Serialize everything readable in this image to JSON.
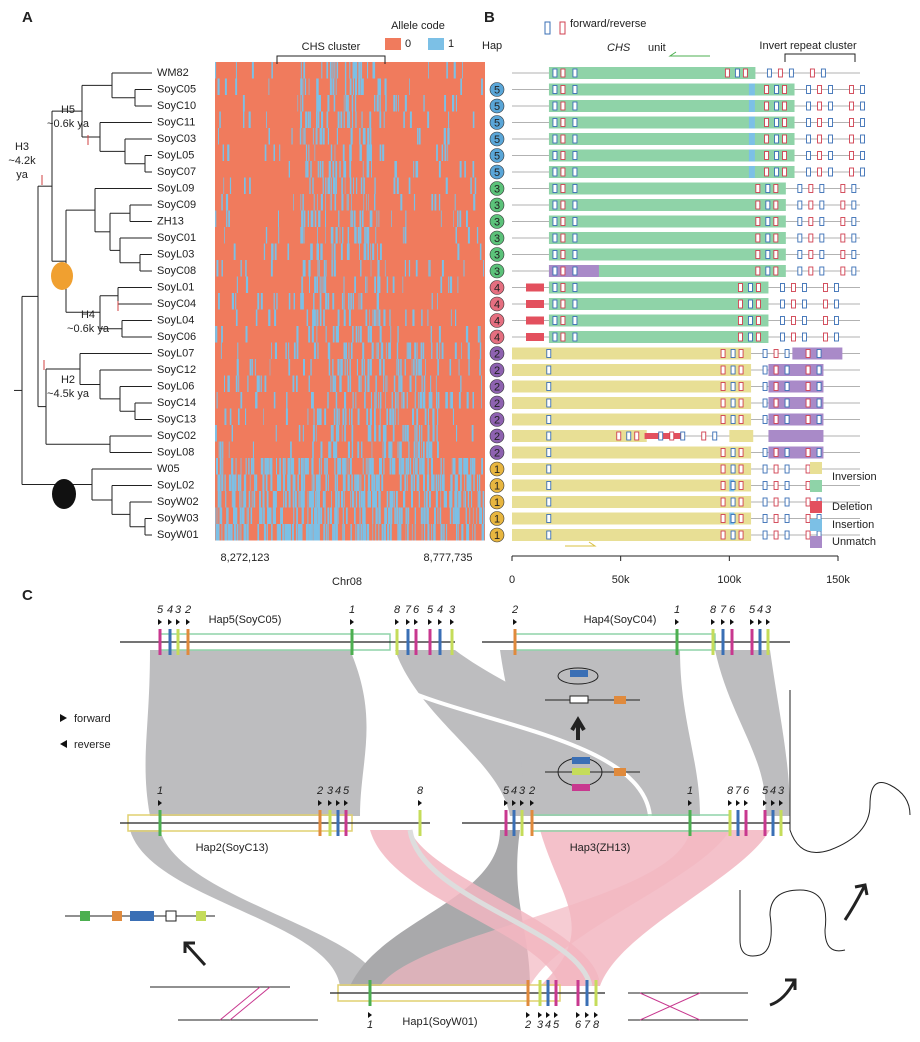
{
  "panels": {
    "a": "A",
    "b": "B",
    "c": "C"
  },
  "panel_a": {
    "samples": [
      "WM82",
      "SoyC05",
      "SoyC10",
      "SoyC11",
      "SoyC03",
      "SoyL05",
      "SoyC07",
      "SoyL09",
      "SoyC09",
      "ZH13",
      "SoyC01",
      "SoyL03",
      "SoyC08",
      "SoyL01",
      "SoyC04",
      "SoyL04",
      "SoyC06",
      "SoyL07",
      "SoyC12",
      "SoyL06",
      "SoyC14",
      "SoyC13",
      "SoyC02",
      "SoyL08",
      "W05",
      "SoyL02",
      "SoyW02",
      "SoyW03",
      "SoyW01"
    ],
    "allele_code_title": "Allele code",
    "allele_codes": [
      "0",
      "1"
    ],
    "cluster_label": "CHS cluster",
    "start": "8,272,123",
    "end": "8,777,735",
    "chromosome": "Chr08",
    "annotations": [
      [
        "H5",
        "~0.6k ya"
      ],
      [
        "H3",
        "~4.2k",
        "ya"
      ],
      [
        "H4",
        "~0.6k ya"
      ],
      [
        "H2",
        "~4.5k ya"
      ]
    ]
  },
  "panel_b": {
    "legend_symbol": "forward/reverse",
    "hap_header": "Hap",
    "unit_label": [
      "CHS",
      "unit"
    ],
    "cluster_label": "Invert repeat cluster",
    "haps": [
      null,
      5,
      5,
      5,
      5,
      5,
      5,
      3,
      3,
      3,
      3,
      3,
      3,
      4,
      4,
      4,
      4,
      2,
      2,
      2,
      2,
      2,
      2,
      2,
      1,
      1,
      1,
      1,
      1
    ],
    "legend": [
      "Inversion",
      "Deletion",
      "Insertion",
      "Unmatch"
    ],
    "axis_ticks": [
      "0",
      "50k",
      "100k",
      "150k"
    ]
  },
  "panel_c": {
    "legend": [
      "forward",
      "reverse"
    ],
    "haps": [
      {
        "label": "Hap5(SoyC05)",
        "genes": [
          "5",
          "4",
          "3",
          "2",
          "1",
          "8",
          "7",
          "6",
          "5",
          "4",
          "3"
        ]
      },
      {
        "label": "Hap4(SoyC04)",
        "genes": [
          "2",
          "1",
          "8",
          "7",
          "6",
          "5",
          "4",
          "3"
        ]
      },
      {
        "label": "Hap2(SoyC13)",
        "genes": [
          "1",
          "2",
          "3",
          "4",
          "5",
          "8"
        ]
      },
      {
        "label": "Hap3(ZH13)",
        "genes": [
          "5",
          "4",
          "3",
          "2",
          "1",
          "8",
          "7",
          "6",
          "5",
          "4",
          "3"
        ]
      },
      {
        "label": "Hap1(SoyW01)",
        "genes": [
          "1",
          "2",
          "3",
          "4",
          "5",
          "6",
          "7",
          "8"
        ]
      }
    ]
  }
}
